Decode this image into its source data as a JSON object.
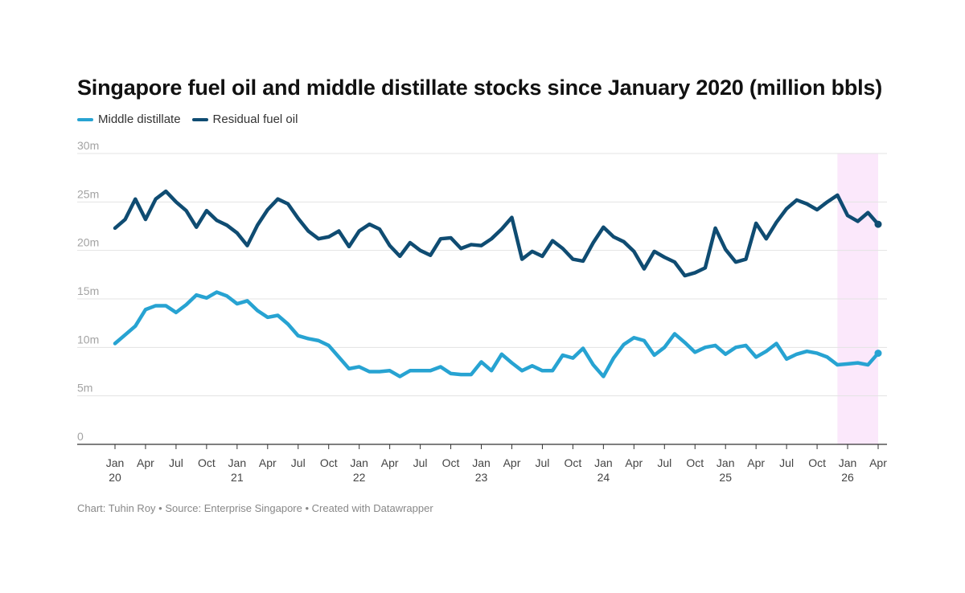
{
  "chart_data": {
    "type": "line",
    "title": "Singapore fuel oil and middle distillate stocks since January 2020 (million bbls)",
    "source_note": "Chart: Tuhin Roy • Source: Enterprise Singapore • Created with Datawrapper",
    "x_start": "2020-01",
    "x_end": "2026-04",
    "ylim": [
      0,
      30
    ],
    "y_ticks": [
      {
        "value": 0,
        "label": "0"
      },
      {
        "value": 5,
        "label": "5m"
      },
      {
        "value": 10,
        "label": "10m"
      },
      {
        "value": 15,
        "label": "15m"
      },
      {
        "value": 20,
        "label": "20m"
      },
      {
        "value": 25,
        "label": "25m"
      },
      {
        "value": 30,
        "label": "30m"
      }
    ],
    "x_ticks": [
      {
        "month": "2020-01",
        "label": "Jan",
        "year": "20"
      },
      {
        "month": "2020-04",
        "label": "Apr"
      },
      {
        "month": "2020-07",
        "label": "Jul"
      },
      {
        "month": "2020-10",
        "label": "Oct"
      },
      {
        "month": "2021-01",
        "label": "Jan",
        "year": "21"
      },
      {
        "month": "2021-04",
        "label": "Apr"
      },
      {
        "month": "2021-07",
        "label": "Jul"
      },
      {
        "month": "2021-10",
        "label": "Oct"
      },
      {
        "month": "2022-01",
        "label": "Jan",
        "year": "22"
      },
      {
        "month": "2022-04",
        "label": "Apr"
      },
      {
        "month": "2022-07",
        "label": "Jul"
      },
      {
        "month": "2022-10",
        "label": "Oct"
      },
      {
        "month": "2023-01",
        "label": "Jan",
        "year": "23"
      },
      {
        "month": "2023-04",
        "label": "Apr"
      },
      {
        "month": "2023-07",
        "label": "Jul"
      },
      {
        "month": "2023-10",
        "label": "Oct"
      },
      {
        "month": "2024-01",
        "label": "Jan",
        "year": "24"
      },
      {
        "month": "2024-04",
        "label": "Apr"
      },
      {
        "month": "2024-07",
        "label": "Jul"
      },
      {
        "month": "2024-10",
        "label": "Oct"
      },
      {
        "month": "2025-01",
        "label": "Jan",
        "year": "25"
      },
      {
        "month": "2025-04",
        "label": "Apr"
      },
      {
        "month": "2025-07",
        "label": "Jul"
      },
      {
        "month": "2025-10",
        "label": "Oct"
      },
      {
        "month": "2026-01",
        "label": "Jan",
        "year": "26"
      },
      {
        "month": "2026-04",
        "label": "Apr"
      }
    ],
    "highlight_range": [
      "2025-12",
      "2026-04"
    ],
    "highlight_color": "#fbe8fb",
    "grid": true,
    "legend_position": "top-left",
    "series": [
      {
        "name": "Middle distillate",
        "color": "#27a3d2",
        "values": [
          10.4,
          11.3,
          12.2,
          13.9,
          14.3,
          14.3,
          13.6,
          14.4,
          15.4,
          15.1,
          15.7,
          15.3,
          14.5,
          14.8,
          13.8,
          13.1,
          13.3,
          12.4,
          11.2,
          10.9,
          10.7,
          10.2,
          9.0,
          7.8,
          8.0,
          7.5,
          7.5,
          7.6,
          7.0,
          7.6,
          7.6,
          7.6,
          8.0,
          7.3,
          7.2,
          7.2,
          8.5,
          7.6,
          9.3,
          8.4,
          7.6,
          8.1,
          7.6,
          7.6,
          9.2,
          8.9,
          9.9,
          8.2,
          7.0,
          8.9,
          10.3,
          11.0,
          10.7,
          9.2,
          10.0,
          11.4,
          10.5,
          9.5,
          10.0,
          10.2,
          9.3,
          10.0,
          10.2,
          9.0,
          9.6,
          10.4,
          8.8,
          9.3,
          9.6,
          9.4,
          9.0,
          8.2,
          8.3,
          8.4,
          8.2,
          9.4
        ]
      },
      {
        "name": "Residual fuel oil",
        "color": "#0f4c72",
        "values": [
          22.3,
          23.2,
          25.3,
          23.2,
          25.3,
          26.1,
          25.0,
          24.1,
          22.4,
          24.1,
          23.1,
          22.6,
          21.8,
          20.5,
          22.6,
          24.2,
          25.3,
          24.8,
          23.3,
          22.0,
          21.2,
          21.4,
          22.0,
          20.4,
          22.0,
          22.7,
          22.2,
          20.5,
          19.4,
          20.8,
          20.0,
          19.5,
          21.2,
          21.3,
          20.2,
          20.6,
          20.5,
          21.2,
          22.2,
          23.4,
          19.1,
          19.9,
          19.4,
          21.0,
          20.2,
          19.1,
          18.9,
          20.8,
          22.4,
          21.4,
          20.9,
          19.9,
          18.1,
          19.9,
          19.3,
          18.8,
          17.4,
          17.7,
          18.2,
          22.3,
          20.1,
          18.8,
          19.1,
          22.8,
          21.2,
          22.9,
          24.3,
          25.2,
          24.8,
          24.2,
          25.0,
          25.7,
          23.6,
          23.0,
          23.9,
          22.7
        ]
      }
    ]
  }
}
